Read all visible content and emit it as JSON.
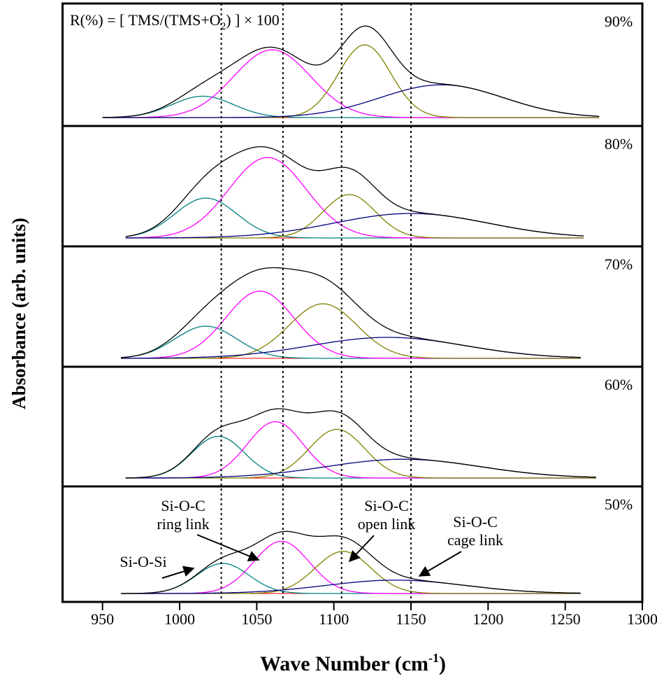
{
  "chart_data": {
    "type": "stacked-peak-fit",
    "formula": [
      "R(%) = [ TMS/(TMS+O",
      "2",
      ") ] × 100"
    ],
    "x_label": [
      "Wave Number (cm",
      "-1",
      ")"
    ],
    "y_label": "Absorbance (arb. units)",
    "xlim": [
      925,
      1300
    ],
    "xticks": [
      950,
      1000,
      1050,
      1100,
      1150,
      1200,
      1250,
      1300
    ],
    "ylim": [
      0,
      160
    ],
    "reference_lines": [
      1027,
      1067,
      1105,
      1150
    ],
    "sum_color": "#000000",
    "panels": [
      {
        "label": "90%",
        "xrange": [
          950,
          1272
        ],
        "peaks": [
          {
            "color": "#008080",
            "center": 1015,
            "height": 30,
            "width": 20
          },
          {
            "color": "#ff00ff",
            "center": 1060,
            "height": 95,
            "width": 25
          },
          {
            "color": "#808000",
            "center": 1120,
            "height": 102,
            "width": 17
          },
          {
            "color": "#000080",
            "center": 1170,
            "height": 46,
            "width": 40
          }
        ]
      },
      {
        "label": "80%",
        "xrange": [
          965,
          1262
        ],
        "peaks": [
          {
            "color": "#008080",
            "center": 1017,
            "height": 57,
            "width": 20
          },
          {
            "color": "#ff00ff",
            "center": 1057,
            "height": 115,
            "width": 25
          },
          {
            "color": "#808000",
            "center": 1110,
            "height": 62,
            "width": 17
          },
          {
            "color": "#000080",
            "center": 1150,
            "height": 35,
            "width": 50
          }
        ]
      },
      {
        "label": "70%",
        "xrange": [
          962,
          1260
        ],
        "peaks": [
          {
            "color": "#008080",
            "center": 1017,
            "height": 46,
            "width": 20
          },
          {
            "color": "#ff00ff",
            "center": 1052,
            "height": 96,
            "width": 22
          },
          {
            "color": "#808000",
            "center": 1093,
            "height": 78,
            "width": 22
          },
          {
            "color": "#000080",
            "center": 1135,
            "height": 30,
            "width": 50
          }
        ]
      },
      {
        "label": "60%",
        "xrange": [
          965,
          1270
        ],
        "peaks": [
          {
            "color": "#008080",
            "center": 1025,
            "height": 60,
            "width": 17
          },
          {
            "color": "#ff00ff",
            "center": 1062,
            "height": 81,
            "width": 18
          },
          {
            "color": "#808000",
            "center": 1102,
            "height": 70,
            "width": 18
          },
          {
            "color": "#000080",
            "center": 1145,
            "height": 27,
            "width": 50
          }
        ]
      },
      {
        "label": "50%",
        "xrange": [
          962,
          1260
        ],
        "peaks": [
          {
            "color": "#008080",
            "center": 1028,
            "height": 45,
            "width": 17
          },
          {
            "color": "#ff00ff",
            "center": 1066,
            "height": 78,
            "width": 18
          },
          {
            "color": "#808000",
            "center": 1106,
            "height": 63,
            "width": 18
          },
          {
            "color": "#000080",
            "center": 1140,
            "height": 20,
            "width": 45
          }
        ]
      }
    ],
    "annotations": [
      {
        "lines": [
          "Si-O-Si"
        ]
      },
      {
        "lines": [
          "Si-O-C",
          "ring link"
        ]
      },
      {
        "lines": [
          "Si-O-C",
          "open link"
        ]
      },
      {
        "lines": [
          "Si-O-C",
          "cage link"
        ]
      }
    ]
  }
}
